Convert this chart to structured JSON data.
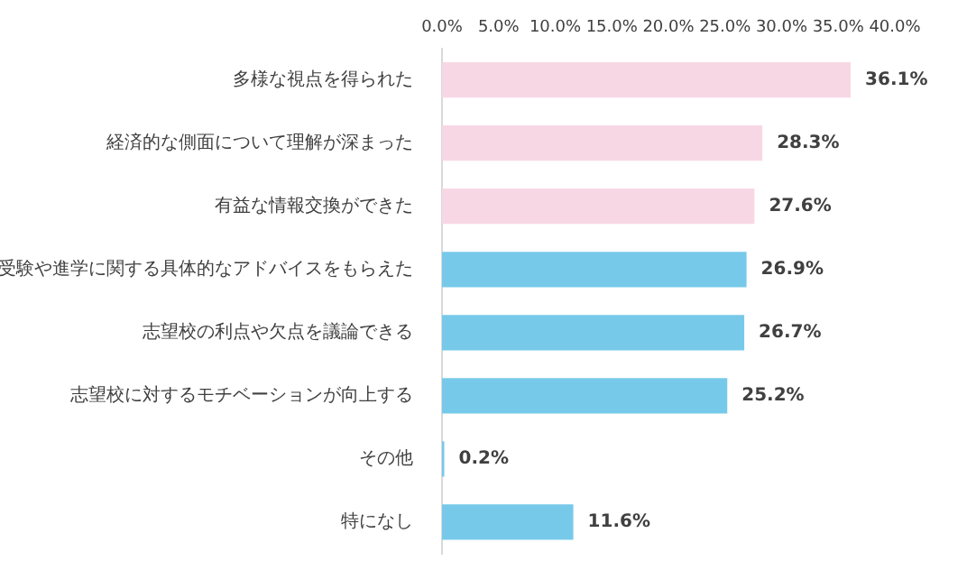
{
  "chart_data": {
    "type": "bar",
    "orientation": "horizontal",
    "categories": [
      "多様な視点を得られた",
      "経済的な側面について理解が深まった",
      "有益な情報交換ができた",
      "受験や進学に関する具体的なアドバイスをもらえた",
      "志望校の利点や欠点を議論できる",
      "志望校に対するモチベーションが向上する",
      "その他",
      "特になし"
    ],
    "values": [
      36.1,
      28.3,
      27.6,
      26.9,
      26.7,
      25.2,
      0.2,
      11.6
    ],
    "colors": [
      "#f8d7e5",
      "#f8d7e5",
      "#f8d7e5",
      "#77c9ea",
      "#77c9ea",
      "#77c9ea",
      "#77c9ea",
      "#77c9ea"
    ],
    "value_labels": [
      "36.1%",
      "28.3%",
      "27.6%",
      "26.9%",
      "26.7%",
      "25.2%",
      "0.2%",
      "11.6%"
    ],
    "xlim": [
      0,
      40
    ],
    "xticks": [
      {
        "value": 0,
        "label": "0.0%"
      },
      {
        "value": 5,
        "label": "5.0%"
      },
      {
        "value": 10,
        "label": "10.0%"
      },
      {
        "value": 15,
        "label": "15.0%"
      },
      {
        "value": 20,
        "label": "20.0%"
      },
      {
        "value": 25,
        "label": "25.0%"
      },
      {
        "value": 30,
        "label": "30.0%"
      },
      {
        "value": 35,
        "label": "35.0%"
      },
      {
        "value": 40,
        "label": "40.0%"
      }
    ],
    "grid": false,
    "legend": false
  }
}
